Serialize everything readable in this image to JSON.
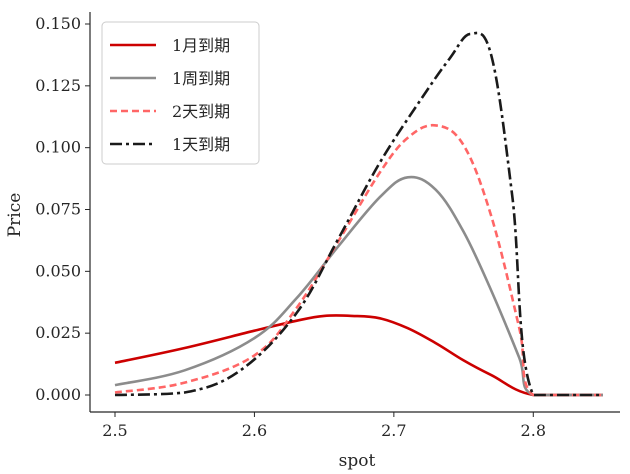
{
  "chart_data": {
    "type": "line",
    "xlabel": "spot",
    "ylabel": "Price",
    "xlim": [
      2.5,
      2.85
    ],
    "ylim": [
      0,
      0.15
    ],
    "xticks": [
      "2.5",
      "2.6",
      "2.7",
      "2.8"
    ],
    "yticks": [
      "0.000",
      "0.025",
      "0.050",
      "0.075",
      "0.100",
      "0.125",
      "0.150"
    ],
    "grid": false,
    "legend_position": "top-left",
    "series": [
      {
        "name": "1月到期",
        "color": "#cc0000",
        "dash": "solid",
        "x": [
          2.5,
          2.55,
          2.6,
          2.63,
          2.65,
          2.67,
          2.69,
          2.71,
          2.73,
          2.75,
          2.77,
          2.8,
          2.85
        ],
        "y": [
          0.013,
          0.019,
          0.026,
          0.03,
          0.032,
          0.032,
          0.031,
          0.027,
          0.021,
          0.014,
          0.008,
          0.0,
          0.0
        ]
      },
      {
        "name": "1周到期",
        "color": "#8c8c8c",
        "dash": "solid",
        "x": [
          2.5,
          2.55,
          2.6,
          2.63,
          2.66,
          2.69,
          2.71,
          2.73,
          2.75,
          2.77,
          2.79,
          2.8,
          2.85
        ],
        "y": [
          0.004,
          0.01,
          0.023,
          0.039,
          0.06,
          0.08,
          0.088,
          0.083,
          0.066,
          0.042,
          0.015,
          0.0,
          0.0
        ]
      },
      {
        "name": "2天到期",
        "color": "#ff6666",
        "dash": "dashed",
        "x": [
          2.5,
          2.55,
          2.6,
          2.63,
          2.66,
          2.69,
          2.71,
          2.73,
          2.75,
          2.77,
          2.79,
          2.8,
          2.85
        ],
        "y": [
          0.001,
          0.005,
          0.016,
          0.035,
          0.062,
          0.09,
          0.104,
          0.109,
          0.101,
          0.072,
          0.027,
          0.0,
          0.0
        ]
      },
      {
        "name": "1天到期",
        "color": "#1a1a1a",
        "dash": "dashdot",
        "x": [
          2.5,
          2.55,
          2.59,
          2.63,
          2.66,
          2.69,
          2.72,
          2.74,
          2.755,
          2.77,
          2.785,
          2.8,
          2.85
        ],
        "y": [
          0.0,
          0.001,
          0.01,
          0.033,
          0.063,
          0.094,
          0.12,
          0.136,
          0.146,
          0.137,
          0.08,
          0.0,
          0.0
        ]
      }
    ]
  }
}
